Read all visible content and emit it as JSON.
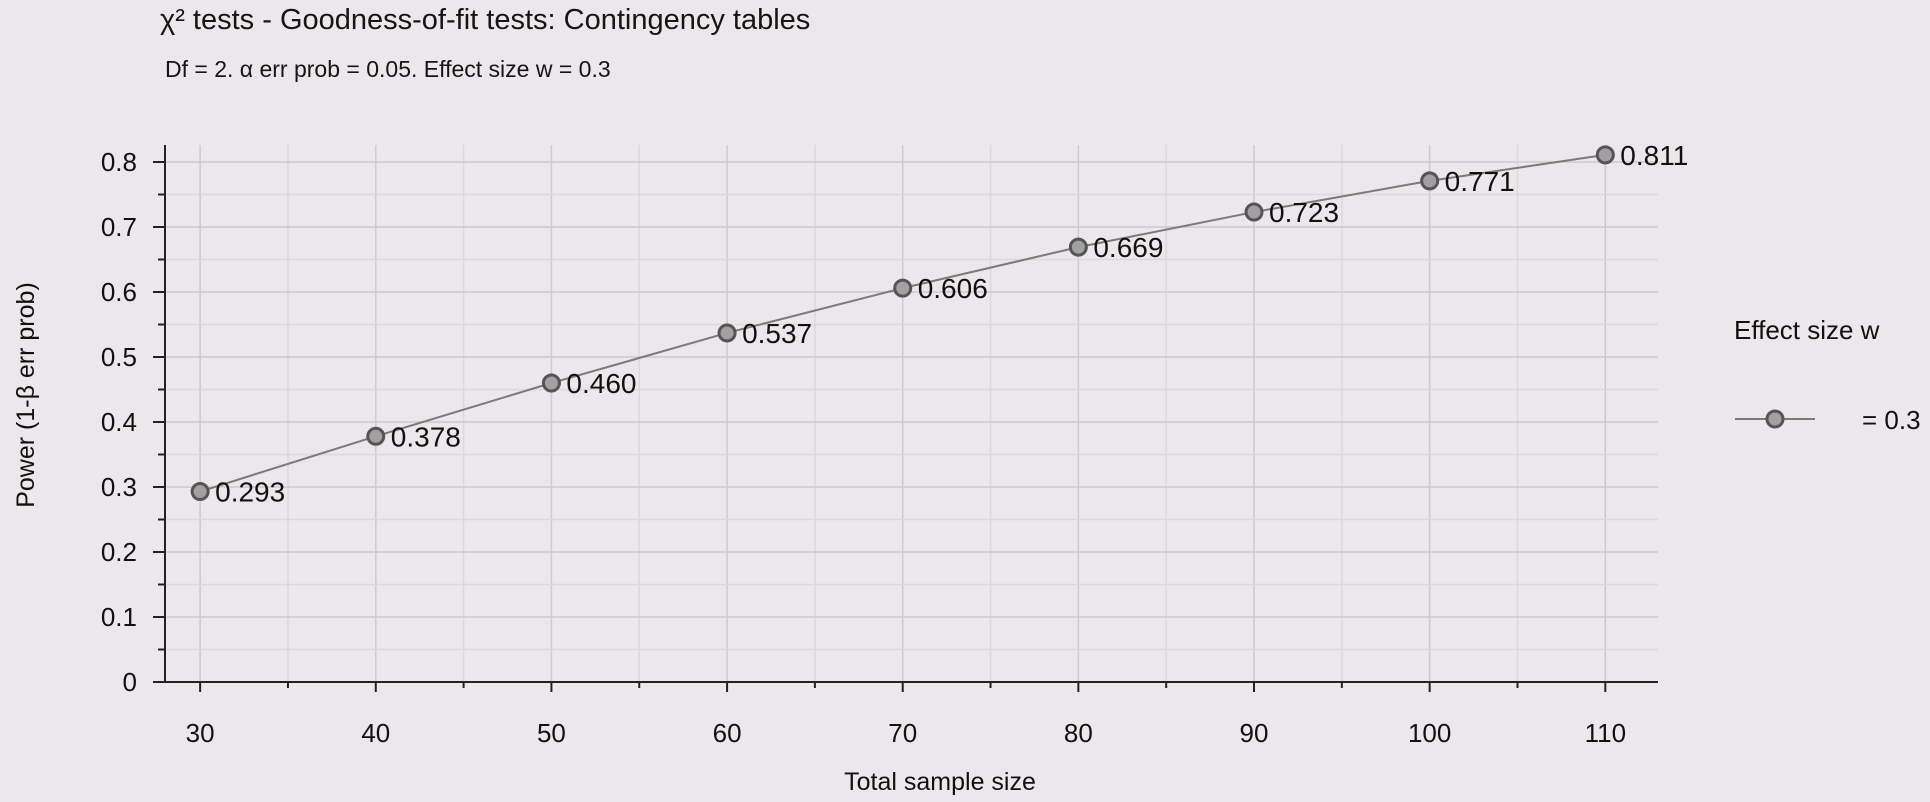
{
  "chart_data": {
    "type": "line",
    "title": "χ² tests - Goodness-of-fit tests: Contingency tables",
    "subtitle": "Df = 2. α err prob = 0.05. Effect size w = 0.3",
    "xlabel": "Total sample size",
    "ylabel": "Power (1-β err prob)",
    "xlim": [
      28,
      113
    ],
    "ylim": [
      0,
      0.8
    ],
    "x_ticks": [
      "30",
      "40",
      "50",
      "60",
      "70",
      "80",
      "90",
      "100",
      "110"
    ],
    "y_ticks": [
      "0",
      "0.1",
      "0.2",
      "0.3",
      "0.4",
      "0.5",
      "0.6",
      "0.7",
      "0.8"
    ],
    "grid": true,
    "legend_title": "Effect size w",
    "legend_position": "right",
    "series": [
      {
        "name": "= 0.3",
        "color": "#7a7a7a",
        "x": [
          30,
          40,
          50,
          60,
          70,
          80,
          90,
          100,
          110
        ],
        "values": [
          0.293,
          0.378,
          0.46,
          0.537,
          0.606,
          0.669,
          0.723,
          0.771,
          0.811
        ],
        "labels": [
          "0.293",
          "0.378",
          "0.460",
          "0.537",
          "0.606",
          "0.669",
          "0.723",
          "0.771",
          "0.811"
        ]
      }
    ]
  }
}
